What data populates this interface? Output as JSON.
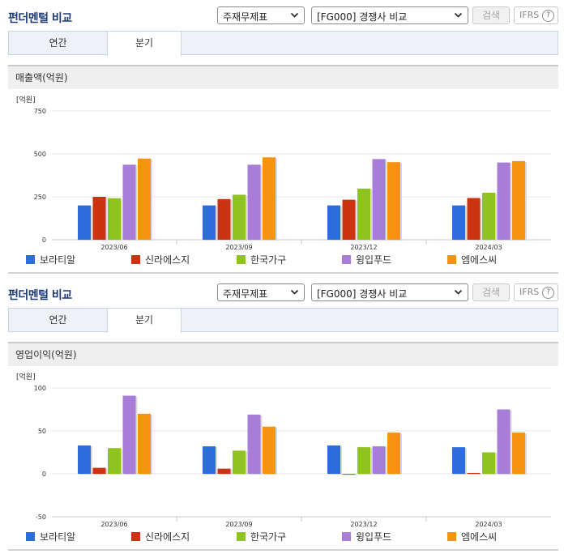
{
  "panels": [
    {
      "title": "펀더멘털 비교",
      "select1": "주재무제표",
      "select2": "[FG000] 경쟁사 비교",
      "search_label": "검색",
      "ifrs_label": "IFRS",
      "help_glyph": "?",
      "tabs": [
        "연간",
        "분기"
      ],
      "active_tab": 1,
      "chart_title": "매출액(억원)"
    },
    {
      "title": "펀더멘털 비교",
      "select1": "주재무제표",
      "select2": "[FG000] 경쟁사 비교",
      "search_label": "검색",
      "ifrs_label": "IFRS",
      "help_glyph": "?",
      "tabs": [
        "연간",
        "분기"
      ],
      "active_tab": 1,
      "chart_title": "영업이익(억원)"
    }
  ],
  "chart_data": [
    {
      "type": "bar",
      "unit_label": "[억원]",
      "categories": [
        "2023/06",
        "2023/09",
        "2023/12",
        "2024/03"
      ],
      "ylim": [
        0,
        750
      ],
      "yticks": [
        0,
        250,
        500,
        750
      ],
      "grid": true,
      "legend_position": "bottom",
      "series": [
        {
          "name": "보라티알",
          "color": "#2d6ddb",
          "values": [
            200,
            200,
            200,
            200
          ]
        },
        {
          "name": "신라에스지",
          "color": "#cc3311",
          "values": [
            250,
            237,
            233,
            243
          ]
        },
        {
          "name": "한국가구",
          "color": "#8fc31f",
          "values": [
            242,
            262,
            298,
            274
          ]
        },
        {
          "name": "윙입푸드",
          "color": "#a87dd8",
          "values": [
            437,
            437,
            470,
            450
          ]
        },
        {
          "name": "엠에스씨",
          "color": "#f6930f",
          "values": [
            473,
            480,
            452,
            458
          ]
        }
      ]
    },
    {
      "type": "bar",
      "unit_label": "[억원]",
      "categories": [
        "2023/06",
        "2023/09",
        "2023/12",
        "2024/03"
      ],
      "ylim": [
        -50,
        100
      ],
      "yticks": [
        -50,
        0,
        50,
        100
      ],
      "grid": true,
      "legend_position": "bottom",
      "series": [
        {
          "name": "보라티알",
          "color": "#2d6ddb",
          "values": [
            33,
            32,
            33,
            31
          ]
        },
        {
          "name": "신라에스지",
          "color": "#cc3311",
          "values": [
            7,
            6,
            0,
            1
          ]
        },
        {
          "name": "한국가구",
          "color": "#8fc31f",
          "values": [
            30,
            27,
            31,
            25
          ]
        },
        {
          "name": "윙입푸드",
          "color": "#a87dd8",
          "values": [
            91,
            69,
            32,
            75
          ]
        },
        {
          "name": "엠에스씨",
          "color": "#f6930f",
          "values": [
            70,
            55,
            48,
            48
          ]
        }
      ]
    }
  ]
}
